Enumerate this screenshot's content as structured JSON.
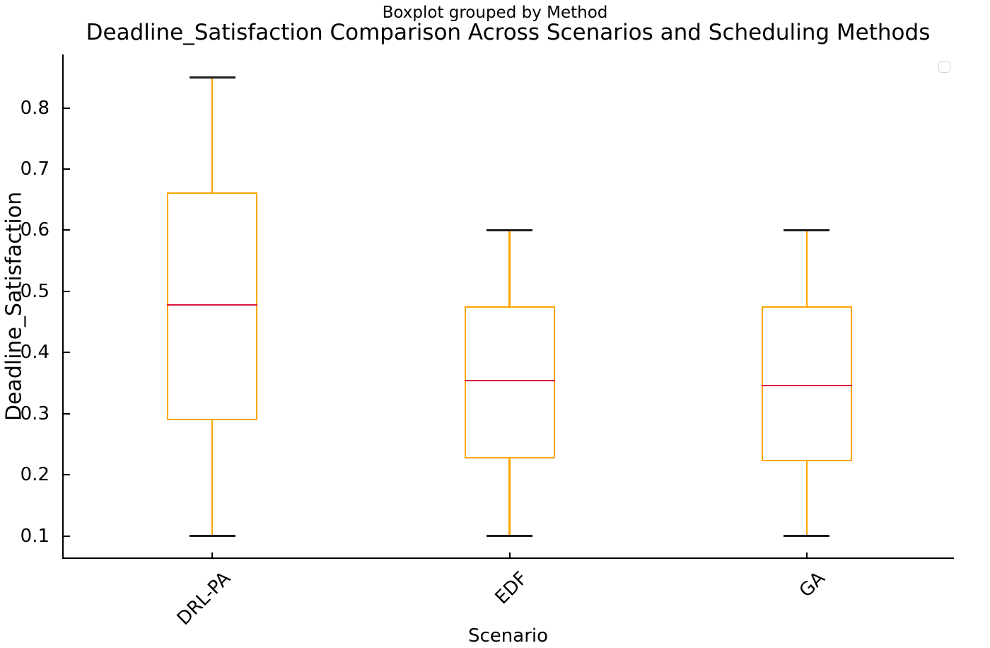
{
  "chart_data": {
    "type": "boxplot",
    "suptitle": "Boxplot grouped by Method",
    "title": "Deadline_Satisfaction Comparison Across Scenarios and Scheduling Methods",
    "xlabel": "Scenario",
    "ylabel": "Deadline_Satisfaction",
    "categories": [
      "DRL-PA",
      "EDF",
      "GA"
    ],
    "series": [
      {
        "name": "DRL-PA",
        "whisker_low": 0.1,
        "q1": 0.289,
        "median": 0.478,
        "q3": 0.662,
        "whisker_high": 0.85
      },
      {
        "name": "EDF",
        "whisker_low": 0.1,
        "q1": 0.227,
        "median": 0.354,
        "q3": 0.476,
        "whisker_high": 0.6
      },
      {
        "name": "GA",
        "whisker_low": 0.1,
        "q1": 0.222,
        "median": 0.346,
        "q3": 0.476,
        "whisker_high": 0.6
      }
    ],
    "yticks": [
      {
        "value": 0.1,
        "label": "0.1"
      },
      {
        "value": 0.2,
        "label": "0.2"
      },
      {
        "value": 0.3,
        "label": "0.3"
      },
      {
        "value": 0.4,
        "label": "0.4"
      },
      {
        "value": 0.5,
        "label": "0.5"
      },
      {
        "value": 0.6,
        "label": "0.6"
      },
      {
        "value": 0.7,
        "label": "0.7"
      },
      {
        "value": 0.8,
        "label": "0.8"
      }
    ],
    "ylim": [
      0.0625,
      0.8875
    ],
    "grid": false,
    "legend": {
      "position": "upper-right",
      "entries": []
    },
    "colors": {
      "box": "#FFA500",
      "whisker": "#FFA500",
      "median": "#DC143C",
      "cap": "#1c1c1c",
      "spine": "#000000",
      "text": "#000000",
      "legend_border": "#d2d2d2"
    }
  }
}
